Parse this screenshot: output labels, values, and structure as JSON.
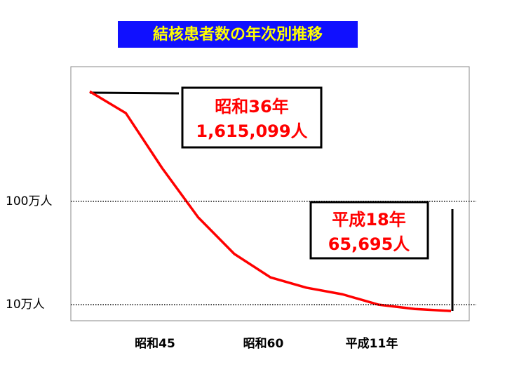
{
  "chart_data": {
    "type": "line",
    "title": "結核患者数の年次別推移",
    "categories": [
      null,
      null,
      "昭和45",
      null,
      null,
      "昭和60",
      null,
      null,
      "平成11年",
      null,
      null
    ],
    "values": [
      11500000,
      7100000,
      2100000,
      700000,
      310000,
      184000,
      146000,
      126000,
      100000,
      91000,
      87000
    ],
    "color": "#ff0000",
    "log_scale": true,
    "ylim": [
      70000,
      20000000
    ],
    "yticks": [
      {
        "value": 1000000,
        "label": "100万人"
      },
      {
        "value": 100000,
        "label": "10万人"
      }
    ],
    "grid": true,
    "annotations": [
      [
        "昭和36年",
        "1,615,099人"
      ],
      [
        "平成18年",
        "65,695人"
      ]
    ]
  }
}
